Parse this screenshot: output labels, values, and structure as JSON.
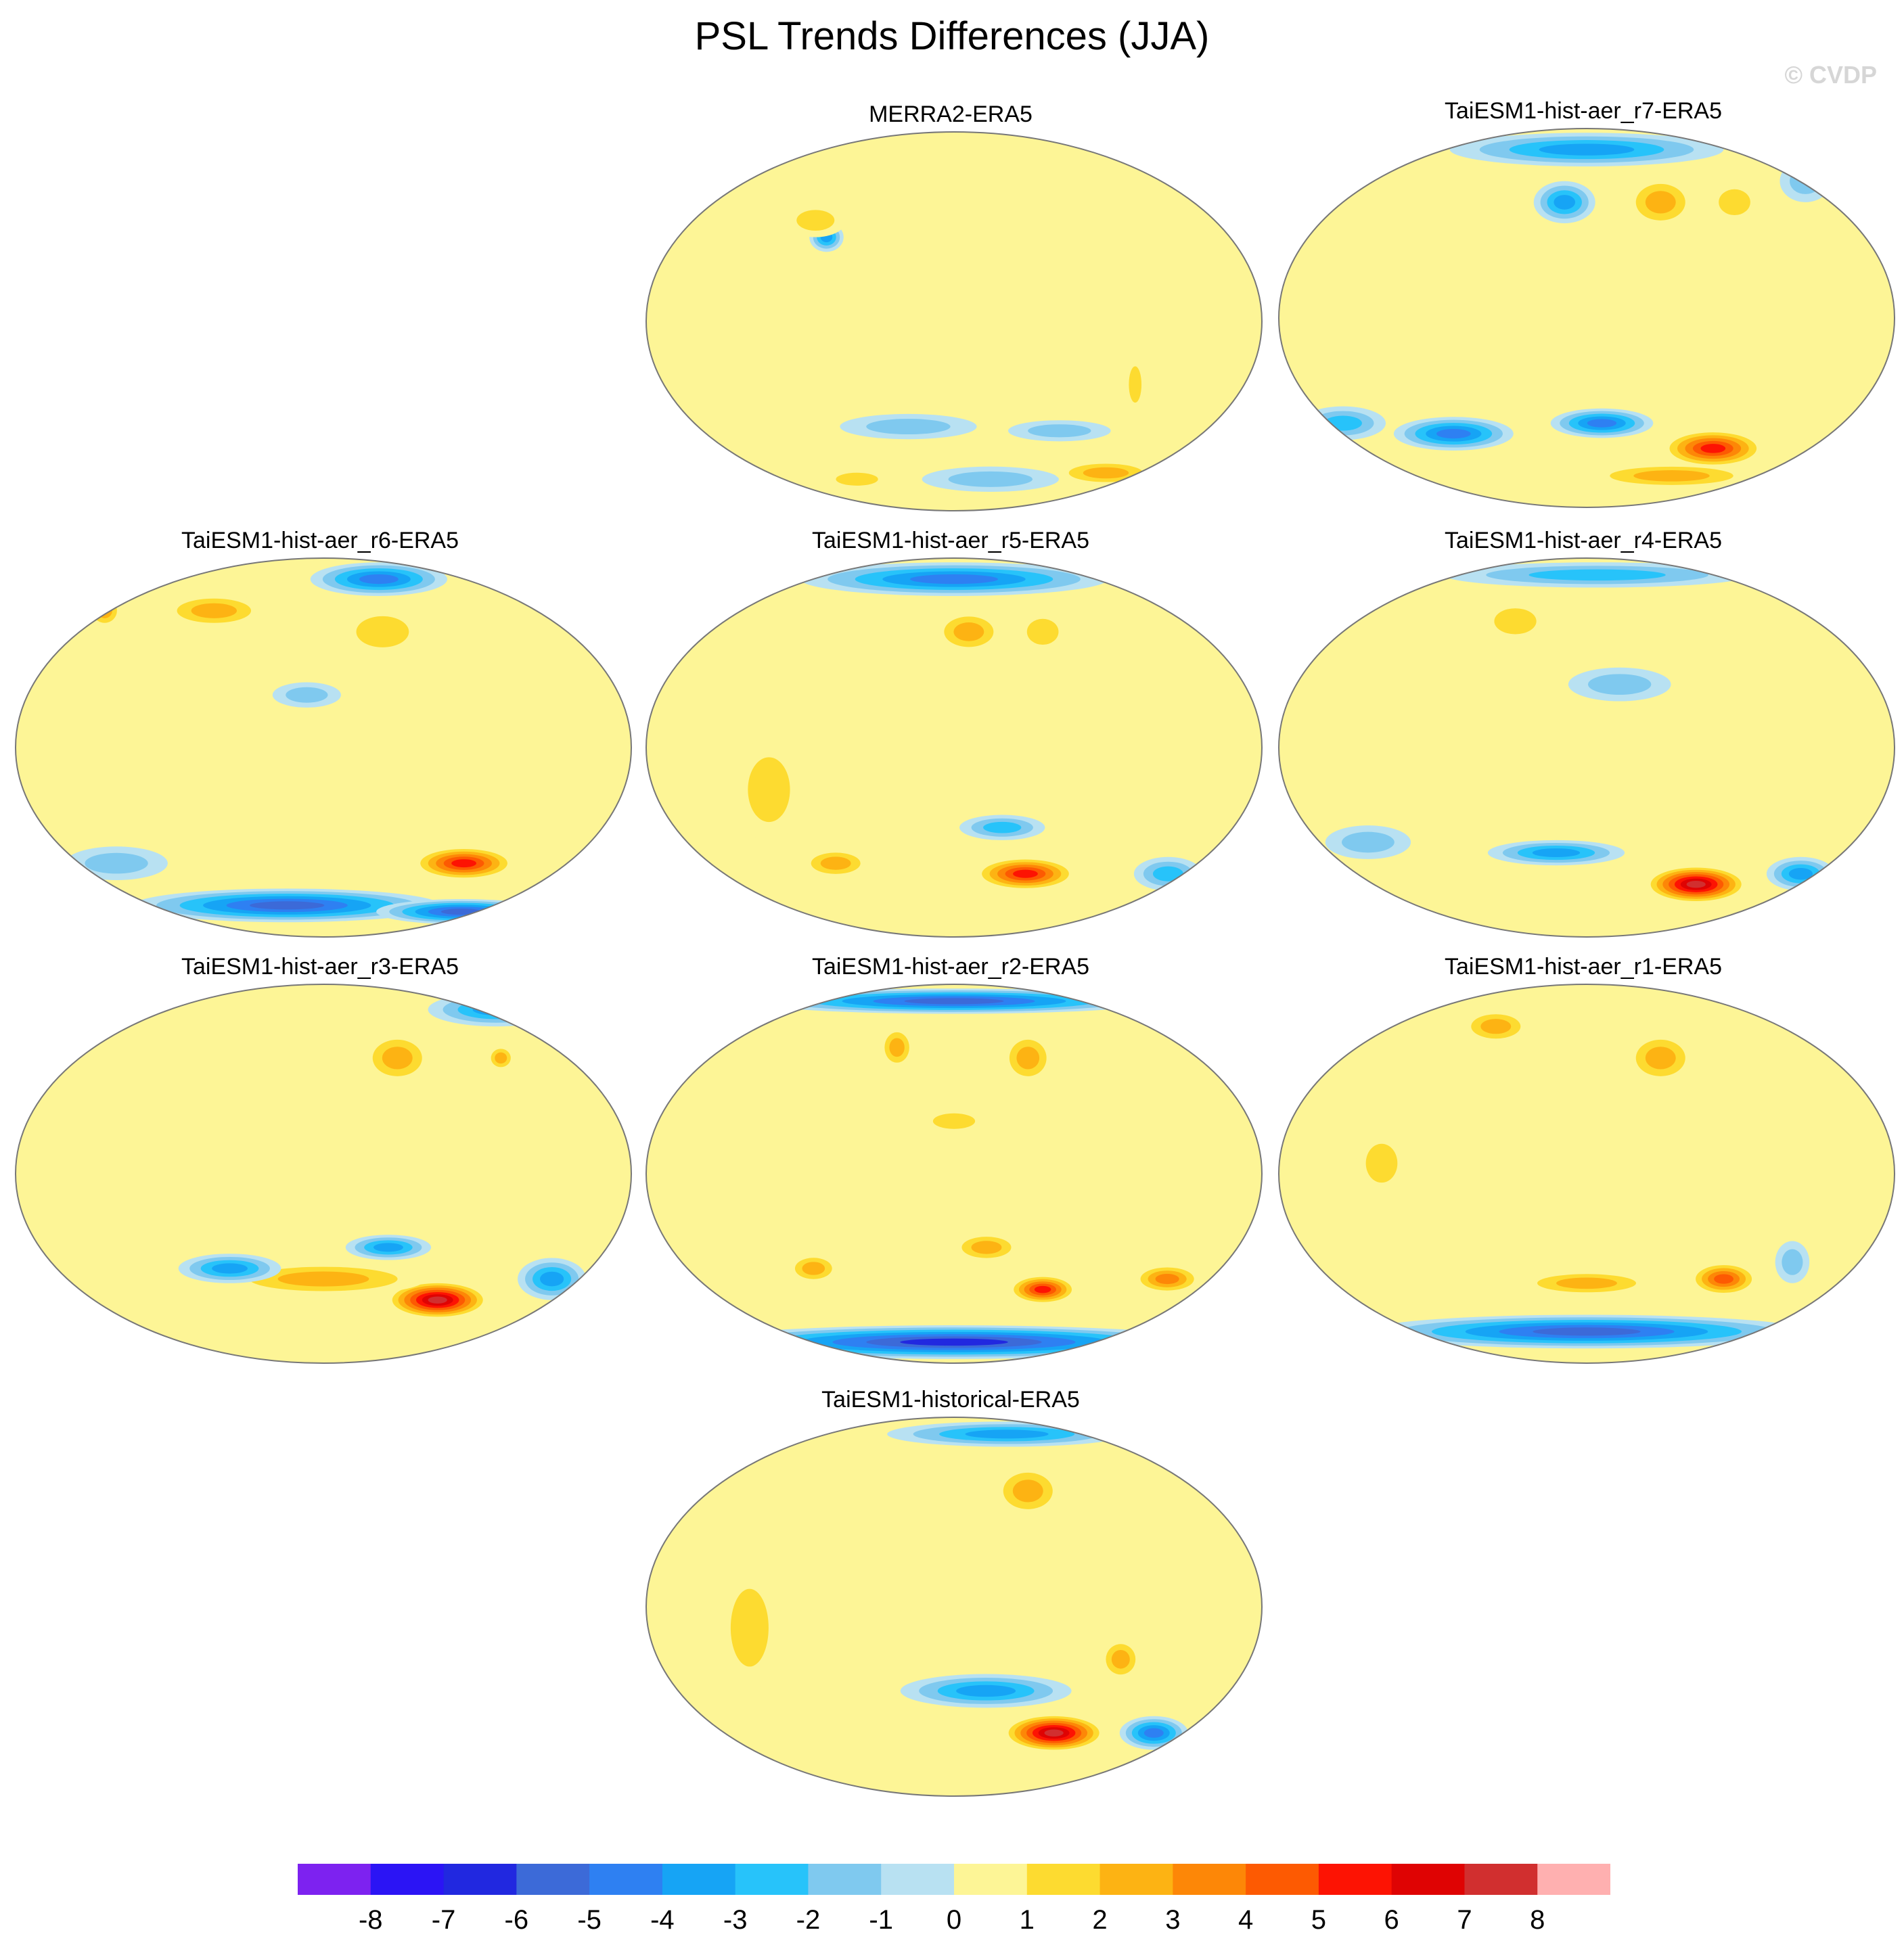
{
  "title": "PSL Trends Differences (JJA)",
  "copyright": "© CVDP",
  "chart_data": {
    "type": "contour-map",
    "projection": "Robinson (Pacific-centered)",
    "variable": "PSL trend difference",
    "season": "JJA",
    "panels": [
      {
        "id": "merra2",
        "label": "MERRA2-ERA5",
        "blobs": [
          {
            "lon": 100,
            "lat": 40,
            "value": -4,
            "rx": 10,
            "ry": 7
          },
          {
            "lon": 90,
            "lat": 48,
            "value": 2,
            "rx": 18,
            "ry": 8
          },
          {
            "lon": 160,
            "lat": -10,
            "value": 1,
            "rx": 40,
            "ry": 12
          },
          {
            "lon": 200,
            "lat": -25,
            "value": 1,
            "rx": 30,
            "ry": 8
          },
          {
            "lon": 290,
            "lat": -30,
            "value": 2,
            "rx": 6,
            "ry": 14
          },
          {
            "lon": 150,
            "lat": -50,
            "value": -2,
            "rx": 40,
            "ry": 6
          },
          {
            "lon": 250,
            "lat": -52,
            "value": -2,
            "rx": 30,
            "ry": 5
          },
          {
            "lon": 210,
            "lat": -75,
            "value": -2,
            "rx": 40,
            "ry": 6
          },
          {
            "lon": 300,
            "lat": -72,
            "value": 3,
            "rx": 30,
            "ry": 6
          },
          {
            "lon": 100,
            "lat": -75,
            "value": 2,
            "rx": 20,
            "ry": 5
          }
        ]
      },
      {
        "id": "r7",
        "label": "TaiESM1-hist-aer_r7-ERA5",
        "blobs": [
          {
            "lon": 180,
            "lat": 80,
            "value": -4,
            "rx": 80,
            "ry": 8
          },
          {
            "lon": 165,
            "lat": 55,
            "value": -4,
            "rx": 18,
            "ry": 10
          },
          {
            "lon": 230,
            "lat": 55,
            "value": 3,
            "rx": 20,
            "ry": 12
          },
          {
            "lon": 280,
            "lat": 55,
            "value": 2,
            "rx": 15,
            "ry": 10
          },
          {
            "lon": 340,
            "lat": 65,
            "value": -2,
            "rx": 15,
            "ry": 10
          },
          {
            "lon": 90,
            "lat": -55,
            "value": -5,
            "rx": 35,
            "ry": 8
          },
          {
            "lon": 190,
            "lat": -50,
            "value": -5,
            "rx": 30,
            "ry": 7
          },
          {
            "lon": 270,
            "lat": -62,
            "value": 6,
            "rx": 30,
            "ry": 9
          },
          {
            "lon": 250,
            "lat": -75,
            "value": 3,
            "rx": 50,
            "ry": 6
          },
          {
            "lon": 20,
            "lat": -50,
            "value": -3,
            "rx": 25,
            "ry": 8
          }
        ]
      },
      {
        "id": "r6",
        "label": "TaiESM1-hist-aer_r6-ERA5",
        "blobs": [
          {
            "lon": 230,
            "lat": 80,
            "value": -5,
            "rx": 40,
            "ry": 8
          },
          {
            "lon": 100,
            "lat": 65,
            "value": 3,
            "rx": 30,
            "ry": 8
          },
          {
            "lon": 220,
            "lat": 55,
            "value": 2,
            "rx": 25,
            "ry": 12
          },
          {
            "lon": 20,
            "lat": 65,
            "value": 3,
            "rx": 10,
            "ry": 8
          },
          {
            "lon": 170,
            "lat": 25,
            "value": -2,
            "rx": 20,
            "ry": 6
          },
          {
            "lon": 275,
            "lat": -55,
            "value": 6,
            "rx": 30,
            "ry": 8
          },
          {
            "lon": 150,
            "lat": -75,
            "value": -6,
            "rx": 90,
            "ry": 8
          },
          {
            "lon": 300,
            "lat": -78,
            "value": -6,
            "rx": 50,
            "ry": 6
          },
          {
            "lon": 40,
            "lat": -55,
            "value": -2,
            "rx": 30,
            "ry": 8
          }
        ]
      },
      {
        "id": "r5",
        "label": "TaiESM1-hist-aer_r5-ERA5",
        "blobs": [
          {
            "lon": 180,
            "lat": 80,
            "value": -5,
            "rx": 90,
            "ry": 8
          },
          {
            "lon": 190,
            "lat": 55,
            "value": 3,
            "rx": 20,
            "ry": 10
          },
          {
            "lon": 240,
            "lat": 55,
            "value": 2,
            "rx": 15,
            "ry": 10
          },
          {
            "lon": 70,
            "lat": -20,
            "value": 2,
            "rx": 20,
            "ry": 25
          },
          {
            "lon": 230,
            "lat": -60,
            "value": 6,
            "rx": 30,
            "ry": 8
          },
          {
            "lon": 100,
            "lat": -55,
            "value": 3,
            "rx": 20,
            "ry": 7
          },
          {
            "lon": 210,
            "lat": -38,
            "value": -3,
            "rx": 25,
            "ry": 6
          },
          {
            "lon": 330,
            "lat": -60,
            "value": -3,
            "rx": 20,
            "ry": 8
          }
        ]
      },
      {
        "id": "r4",
        "label": "TaiESM1-hist-aer_r4-ERA5",
        "blobs": [
          {
            "lon": 190,
            "lat": 82,
            "value": -3,
            "rx": 90,
            "ry": 6
          },
          {
            "lon": 130,
            "lat": 60,
            "value": 2,
            "rx": 20,
            "ry": 10
          },
          {
            "lon": 200,
            "lat": 30,
            "value": -2,
            "rx": 30,
            "ry": 8
          },
          {
            "lon": 260,
            "lat": -65,
            "value": 8,
            "rx": 30,
            "ry": 9
          },
          {
            "lon": 160,
            "lat": -50,
            "value": -4,
            "rx": 40,
            "ry": 6
          },
          {
            "lon": 330,
            "lat": -60,
            "value": -4,
            "rx": 20,
            "ry": 8
          },
          {
            "lon": 40,
            "lat": -45,
            "value": -2,
            "rx": 25,
            "ry": 8
          }
        ]
      },
      {
        "id": "r3",
        "label": "TaiESM1-hist-aer_r3-ERA5",
        "blobs": [
          {
            "lon": 330,
            "lat": 78,
            "value": -4,
            "rx": 40,
            "ry": 8
          },
          {
            "lon": 230,
            "lat": 55,
            "value": 3,
            "rx": 20,
            "ry": 12
          },
          {
            "lon": 300,
            "lat": 55,
            "value": 3,
            "rx": 8,
            "ry": 6
          },
          {
            "lon": 260,
            "lat": -60,
            "value": 8,
            "rx": 30,
            "ry": 9
          },
          {
            "lon": 180,
            "lat": -50,
            "value": 3,
            "rx": 60,
            "ry": 8
          },
          {
            "lon": 120,
            "lat": -45,
            "value": -4,
            "rx": 30,
            "ry": 7
          },
          {
            "lon": 330,
            "lat": -50,
            "value": -4,
            "rx": 20,
            "ry": 10
          },
          {
            "lon": 220,
            "lat": -35,
            "value": -4,
            "rx": 25,
            "ry": 6
          }
        ]
      },
      {
        "id": "r2",
        "label": "TaiESM1-hist-aer_r2-ERA5",
        "blobs": [
          {
            "lon": 180,
            "lat": 82,
            "value": -6,
            "rx": 120,
            "ry": 6
          },
          {
            "lon": 140,
            "lat": 60,
            "value": 3,
            "rx": 10,
            "ry": 10
          },
          {
            "lon": 230,
            "lat": 55,
            "value": 3,
            "rx": 15,
            "ry": 12
          },
          {
            "lon": 180,
            "lat": 25,
            "value": 2,
            "rx": 20,
            "ry": 6
          },
          {
            "lon": 240,
            "lat": -55,
            "value": 6,
            "rx": 20,
            "ry": 7
          },
          {
            "lon": 200,
            "lat": -35,
            "value": 3,
            "rx": 20,
            "ry": 7
          },
          {
            "lon": 320,
            "lat": -50,
            "value": 4,
            "rx": 20,
            "ry": 7
          },
          {
            "lon": 90,
            "lat": -45,
            "value": 3,
            "rx": 15,
            "ry": 7
          },
          {
            "lon": 180,
            "lat": -80,
            "value": -7,
            "rx": 150,
            "ry": 8
          }
        ]
      },
      {
        "id": "r1",
        "label": "TaiESM1-hist-aer_r1-ERA5",
        "blobs": [
          {
            "lon": 110,
            "lat": 70,
            "value": 3,
            "rx": 20,
            "ry": 8
          },
          {
            "lon": 230,
            "lat": 55,
            "value": 3,
            "rx": 20,
            "ry": 12
          },
          {
            "lon": 270,
            "lat": -50,
            "value": 5,
            "rx": 20,
            "ry": 8
          },
          {
            "lon": 180,
            "lat": -52,
            "value": 3,
            "rx": 40,
            "ry": 6
          },
          {
            "lon": 180,
            "lat": -75,
            "value": -6,
            "rx": 130,
            "ry": 8
          },
          {
            "lon": 310,
            "lat": -42,
            "value": -2,
            "rx": 10,
            "ry": 10
          },
          {
            "lon": 60,
            "lat": 5,
            "value": 2,
            "rx": 15,
            "ry": 15
          }
        ]
      },
      {
        "id": "historical",
        "label": "TaiESM1-historical-ERA5",
        "blobs": [
          {
            "lon": 230,
            "lat": 82,
            "value": -4,
            "rx": 70,
            "ry": 6
          },
          {
            "lon": 230,
            "lat": 55,
            "value": 3,
            "rx": 20,
            "ry": 12
          },
          {
            "lon": 60,
            "lat": -10,
            "value": 2,
            "rx": 18,
            "ry": 30
          },
          {
            "lon": 250,
            "lat": -60,
            "value": 8,
            "rx": 30,
            "ry": 9
          },
          {
            "lon": 200,
            "lat": -40,
            "value": -4,
            "rx": 50,
            "ry": 8
          },
          {
            "lon": 320,
            "lat": -60,
            "value": -5,
            "rx": 20,
            "ry": 8
          },
          {
            "lon": 280,
            "lat": -25,
            "value": 3,
            "rx": 12,
            "ry": 10
          }
        ]
      }
    ],
    "colorbar": {
      "labels": [
        "-8",
        "-7",
        "-6",
        "-5",
        "-4",
        "-3",
        "-2",
        "-1",
        "0",
        "1",
        "2",
        "3",
        "4",
        "5",
        "6",
        "7",
        "8"
      ],
      "colors": [
        "#7d22f0",
        "#2b14f5",
        "#2128e0",
        "#3c6ad8",
        "#2e80f2",
        "#16a4f5",
        "#27c3fa",
        "#7fc9ef",
        "#b8e1f2",
        "#fdf596",
        "#fddb30",
        "#fdb313",
        "#fd8707",
        "#fd5a02",
        "#fd1303",
        "#df0303",
        "#d12f2f",
        "#ffb0b0"
      ]
    }
  }
}
